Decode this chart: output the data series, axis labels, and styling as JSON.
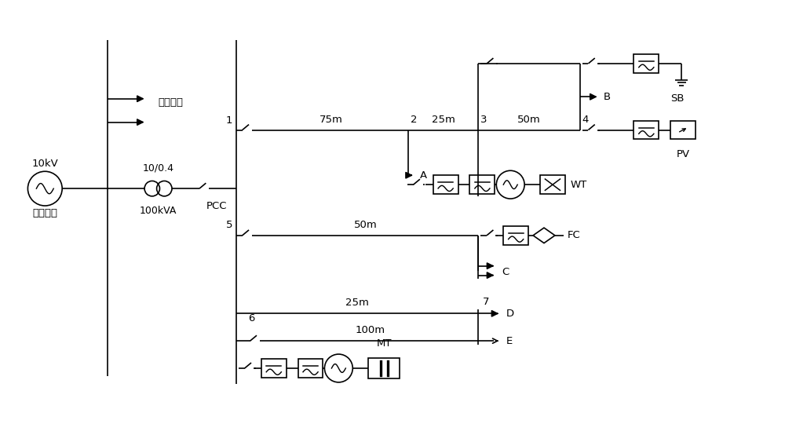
{
  "bg_color": "#ffffff",
  "line_color": "#000000",
  "lw": 1.2,
  "fs": 9.5,
  "fig_w": 10.0,
  "fig_h": 5.4,
  "dpi": 100,
  "xlim": [
    0,
    100
  ],
  "ylim": [
    0,
    54
  ]
}
